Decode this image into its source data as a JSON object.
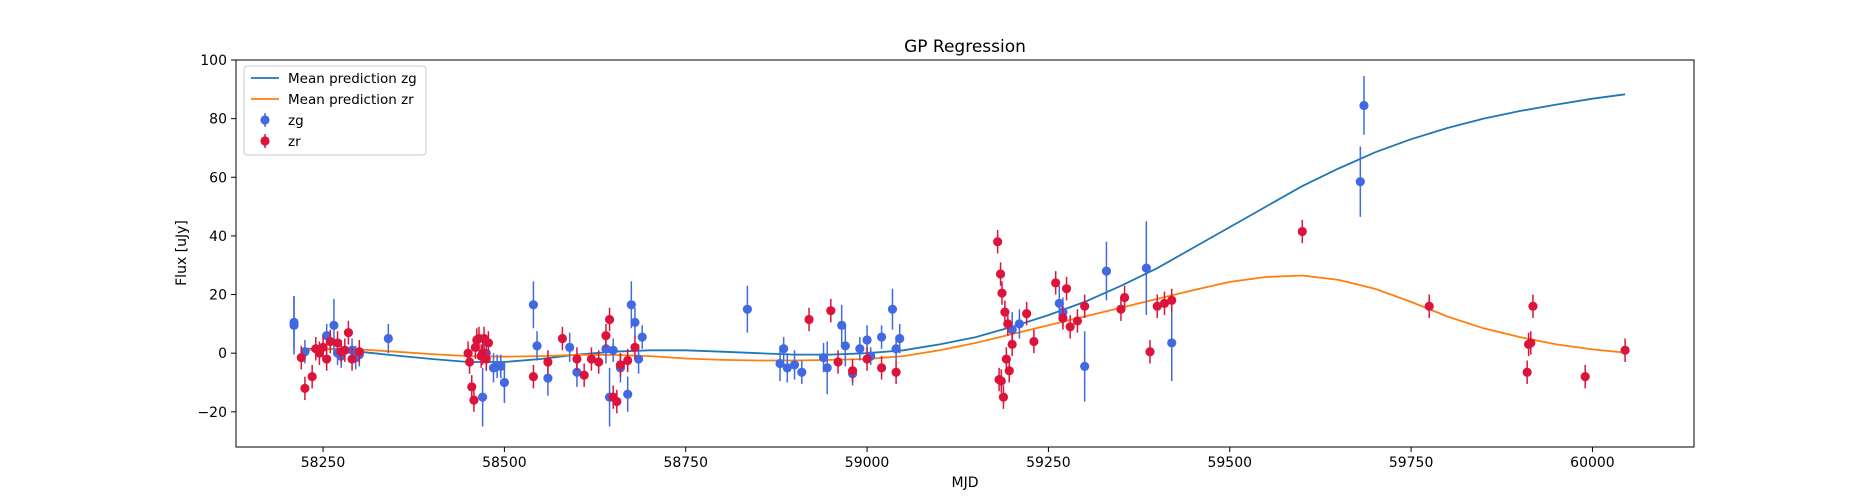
{
  "chart_data": {
    "type": "scatter",
    "title": "GP Regression",
    "xlabel": "MJD",
    "ylabel": "Flux [uJy]",
    "xlim": [
      58130,
      60140
    ],
    "ylim": [
      -32,
      100
    ],
    "xticks": [
      58250,
      58500,
      58750,
      59000,
      59250,
      59500,
      59750,
      60000
    ],
    "yticks": [
      -20,
      0,
      20,
      40,
      60,
      80,
      100
    ],
    "legend_position": "upper-left",
    "legend": [
      {
        "label": "Mean prediction zg",
        "kind": "line",
        "color": "#1f77b4"
      },
      {
        "label": "Mean prediction zr",
        "kind": "line",
        "color": "#ff7f0e"
      },
      {
        "label": "zg",
        "kind": "errorbar",
        "color": "#4169e1"
      },
      {
        "label": "zr",
        "kind": "errorbar",
        "color": "#dc143c"
      }
    ],
    "lines": [
      {
        "name": "Mean prediction zg",
        "color": "#1f77b4",
        "x": [
          58220,
          58260,
          58300,
          58350,
          58400,
          58450,
          58500,
          58550,
          58600,
          58650,
          58700,
          58750,
          58800,
          58850,
          58900,
          58950,
          59000,
          59050,
          59100,
          59150,
          59200,
          59250,
          59300,
          59350,
          59400,
          59450,
          59500,
          59550,
          59600,
          59650,
          59700,
          59750,
          59800,
          59850,
          59900,
          59950,
          60000,
          60045
        ],
        "y": [
          1.5,
          1.5,
          0.5,
          -0.8,
          -2.0,
          -3.0,
          -3.0,
          -2.0,
          -0.5,
          0.5,
          1.0,
          1.0,
          0.5,
          0.0,
          -0.5,
          -0.5,
          0.0,
          1.0,
          3.0,
          5.5,
          9.0,
          13.0,
          17.5,
          23.0,
          29.0,
          36.0,
          43.0,
          50.0,
          57.0,
          63.0,
          68.5,
          73.0,
          76.8,
          80.0,
          82.6,
          84.8,
          86.8,
          88.3
        ]
      },
      {
        "name": "Mean prediction zr",
        "color": "#ff7f0e",
        "x": [
          58220,
          58260,
          58300,
          58350,
          58400,
          58450,
          58500,
          58550,
          58600,
          58650,
          58700,
          58750,
          58800,
          58850,
          58900,
          58950,
          59000,
          59050,
          59100,
          59150,
          59200,
          59250,
          59300,
          59350,
          59400,
          59450,
          59500,
          59550,
          59600,
          59650,
          59700,
          59750,
          59800,
          59850,
          59900,
          59950,
          60000,
          60045
        ],
        "y": [
          1.0,
          1.5,
          1.3,
          0.5,
          -0.3,
          -1.0,
          -1.2,
          -1.0,
          -0.6,
          -0.6,
          -1.0,
          -1.8,
          -2.3,
          -2.5,
          -2.5,
          -2.3,
          -2.0,
          -1.0,
          1.0,
          3.5,
          6.5,
          9.5,
          12.5,
          15.5,
          18.5,
          21.5,
          24.3,
          26.0,
          26.5,
          25.0,
          22.0,
          17.5,
          12.5,
          8.5,
          5.5,
          3.0,
          1.3,
          0.2
        ]
      }
    ],
    "series": [
      {
        "name": "zg",
        "color": "#4169e1",
        "x": [
          58210,
          58210,
          58225,
          58255,
          58265,
          58270,
          58275,
          58290,
          58295,
          58300,
          58340,
          58470,
          58475,
          58485,
          58490,
          58495,
          58500,
          58540,
          58545,
          58560,
          58590,
          58600,
          58640,
          58645,
          58650,
          58660,
          58670,
          58675,
          58680,
          58685,
          58690,
          58835,
          58880,
          58885,
          58890,
          58900,
          58910,
          58940,
          58945,
          58965,
          58970,
          58980,
          58990,
          59000,
          59005,
          59020,
          59035,
          59040,
          59045,
          59200,
          59210,
          59265,
          59270,
          59300,
          59330,
          59385,
          59420,
          59680,
          59685
        ],
        "y": [
          9.5,
          10.5,
          0.5,
          6,
          9.5,
          0,
          -1,
          1,
          -1.5,
          -0.5,
          5,
          -15,
          0,
          -5,
          -4.5,
          -4.5,
          -10,
          16.5,
          2.5,
          -8.5,
          2,
          -6.5,
          1.5,
          -15,
          1,
          -5,
          -14,
          16.5,
          10.5,
          -2,
          5.5,
          15,
          -3.5,
          1.5,
          -5,
          -4,
          -6.5,
          -1.5,
          -5,
          9.5,
          2.5,
          -7,
          1.5,
          4.5,
          -1,
          5.5,
          15,
          1.5,
          5,
          8,
          10,
          17,
          14,
          -4.5,
          28,
          29,
          3.5,
          58.5,
          84.5
        ],
        "err": [
          10,
          9,
          4,
          4,
          9,
          4,
          4,
          4,
          4,
          4,
          5,
          10,
          6,
          5,
          4,
          4,
          7,
          8,
          5,
          6,
          5,
          5,
          5,
          10,
          4,
          5,
          6,
          8,
          5,
          5,
          4,
          8,
          6,
          4,
          5,
          5,
          4,
          5,
          9,
          7,
          7,
          4,
          4,
          5,
          3,
          4,
          7,
          4,
          5,
          6,
          5,
          6,
          5,
          12,
          10,
          16,
          13,
          12,
          10
        ]
      },
      {
        "name": "zr",
        "color": "#dc143c",
        "x": [
          58220,
          58225,
          58235,
          58240,
          58245,
          58250,
          58255,
          58260,
          58270,
          58275,
          58280,
          58285,
          58290,
          58300,
          58450,
          58452,
          58455,
          58458,
          58460,
          58462,
          58465,
          58468,
          58470,
          58472,
          58475,
          58478,
          58540,
          58560,
          58580,
          58600,
          58610,
          58620,
          58630,
          58640,
          58645,
          58650,
          58655,
          58660,
          58670,
          58680,
          58920,
          58950,
          58960,
          58980,
          59000,
          59020,
          59040,
          59180,
          59182,
          59184,
          59185,
          59186,
          59188,
          59190,
          59192,
          59194,
          59196,
          59200,
          59220,
          59230,
          59260,
          59270,
          59275,
          59280,
          59290,
          59300,
          59350,
          59355,
          59390,
          59400,
          59410,
          59420,
          59600,
          59775,
          59910,
          59912,
          59915,
          59918,
          59990,
          60045
        ],
        "y": [
          -1.5,
          -12,
          -8,
          1.5,
          0,
          2,
          -2,
          4,
          3.5,
          0.5,
          1,
          7,
          -2,
          0.5,
          0,
          -3,
          -11.5,
          -16,
          2,
          4.5,
          5,
          -1,
          0,
          5,
          -2,
          3.5,
          -8,
          -3,
          5,
          -2,
          -7.5,
          -2,
          -3,
          6,
          11.5,
          -15,
          -16.5,
          -4,
          -2.5,
          2,
          11.5,
          14.5,
          -3,
          -6,
          -2,
          -5,
          -6.5,
          38,
          -9,
          27,
          -9.5,
          20.5,
          -15,
          14,
          -2,
          10,
          -6,
          3,
          13.5,
          4,
          24,
          12,
          22,
          9,
          11,
          16,
          15,
          19,
          0.5,
          16,
          17,
          18,
          41.5,
          16,
          -6.5,
          3,
          3.5,
          16,
          -8,
          1
        ]
      }
    ]
  }
}
